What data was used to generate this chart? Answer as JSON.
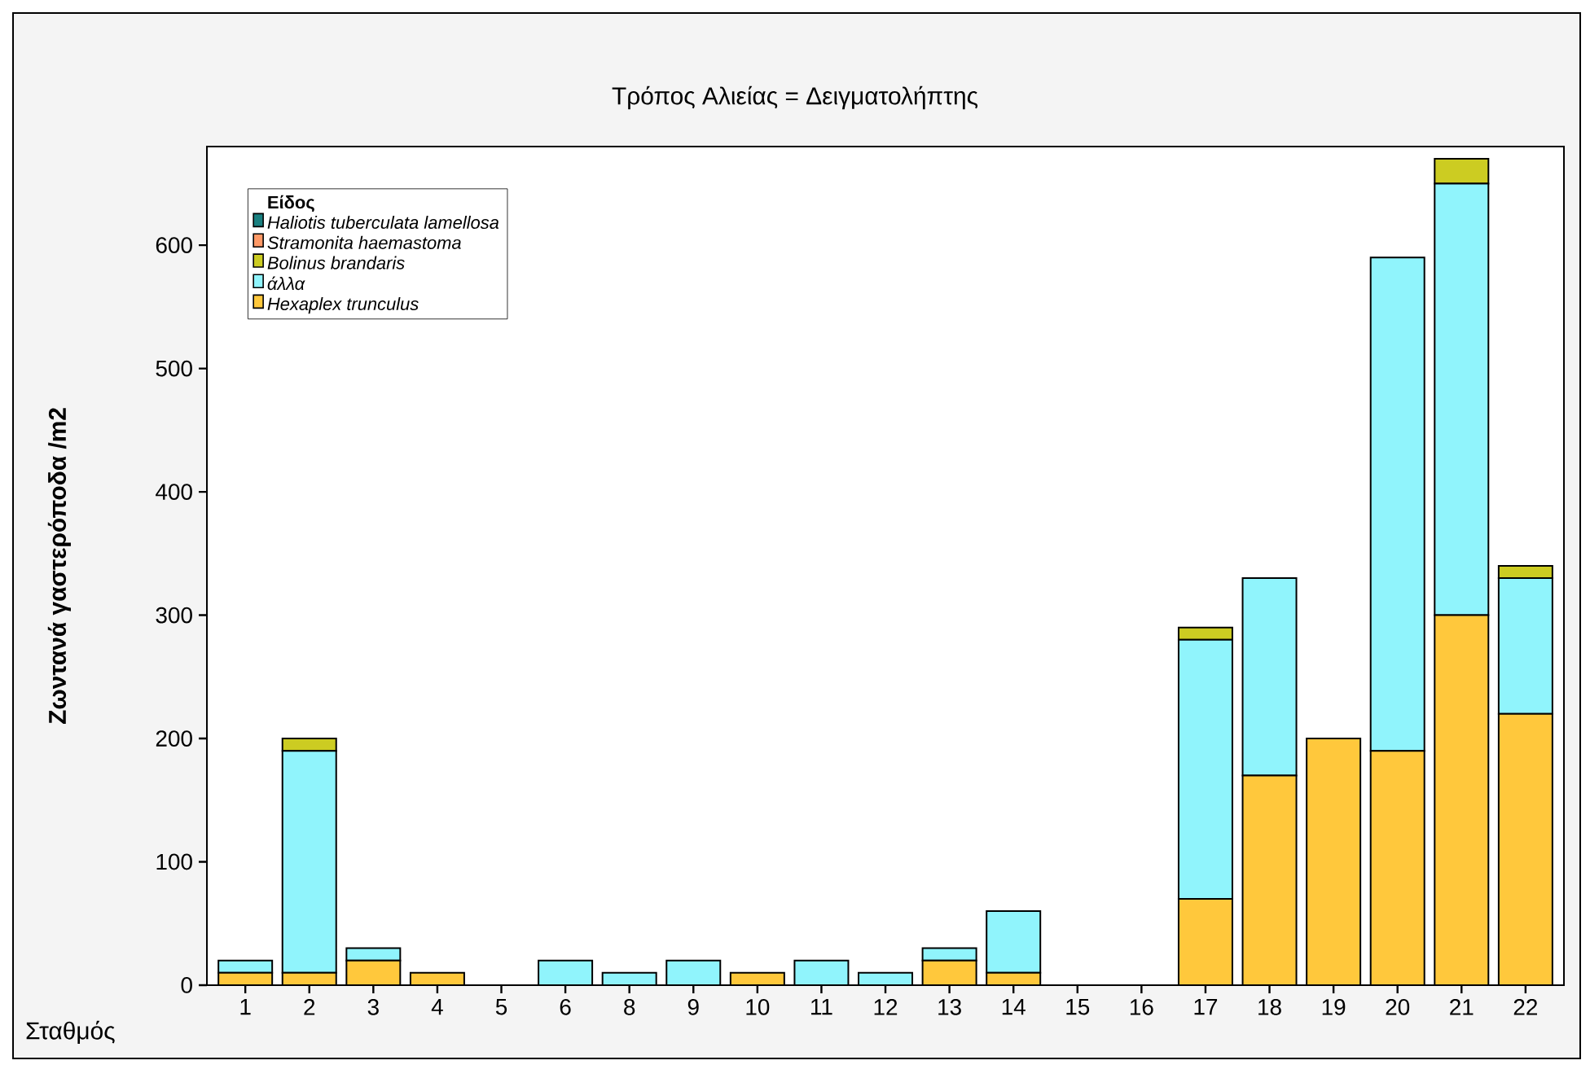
{
  "chart_data": {
    "type": "bar",
    "stacked": true,
    "title": "Τρόπος Αλιείας = Δειγματολήπτης",
    "xlabel": "Σταθμός",
    "ylabel": "Ζωντανά γαστερόποδα /m2",
    "legend_title": "Είδος",
    "legend": "top left",
    "categories": [
      "1",
      "2",
      "3",
      "4",
      "5",
      "6",
      "8",
      "9",
      "10",
      "11",
      "12",
      "13",
      "14",
      "15",
      "16",
      "17",
      "18",
      "19",
      "20",
      "21",
      "22"
    ],
    "ylim": [
      0,
      680
    ],
    "yticks": [
      0,
      100,
      200,
      300,
      400,
      500,
      600
    ],
    "series": [
      {
        "name": "Hexaplex trunculus",
        "color": "#ffc83c",
        "values": [
          10,
          10,
          20,
          10,
          0,
          0,
          0,
          0,
          10,
          0,
          0,
          20,
          10,
          0,
          0,
          70,
          170,
          200,
          190,
          300,
          220
        ]
      },
      {
        "name": "άλλα",
        "color": "#90f4fc",
        "values": [
          10,
          180,
          10,
          0,
          0,
          20,
          10,
          20,
          0,
          20,
          10,
          10,
          50,
          0,
          0,
          210,
          160,
          0,
          400,
          350,
          110
        ]
      },
      {
        "name": "Bolinus brandaris",
        "color": "#cccc22",
        "values": [
          0,
          10,
          0,
          0,
          0,
          0,
          0,
          0,
          0,
          0,
          0,
          0,
          0,
          0,
          0,
          10,
          0,
          0,
          0,
          20,
          10
        ]
      },
      {
        "name": "Stramonita haemastoma",
        "color": "#ff9966",
        "values": [
          0,
          0,
          0,
          0,
          0,
          0,
          0,
          0,
          0,
          0,
          0,
          0,
          0,
          0,
          0,
          0,
          0,
          0,
          0,
          0,
          0
        ]
      },
      {
        "name": "Haliotis tuberculata lamellosa",
        "color": "#1a8080",
        "values": [
          0,
          0,
          0,
          0,
          0,
          0,
          0,
          0,
          0,
          0,
          0,
          0,
          0,
          0,
          0,
          0,
          0,
          0,
          0,
          0,
          0
        ]
      }
    ]
  }
}
